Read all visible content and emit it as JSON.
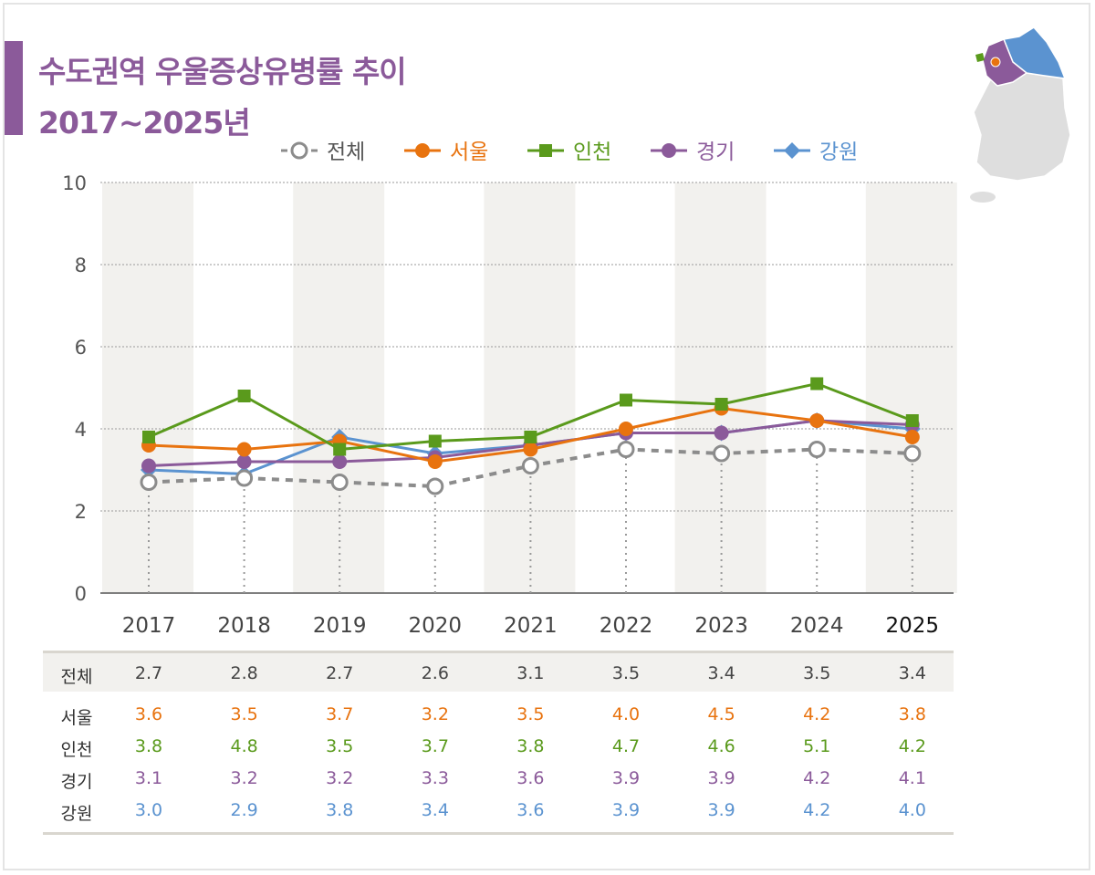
{
  "title": {
    "line1": "수도권역 우울증상유병률 추이",
    "line2": "2017~2025년"
  },
  "chart_data": {
    "type": "line",
    "title": "수도권역 우울증상유병률 추이 2017~2025년",
    "categories": [
      "2017",
      "2018",
      "2019",
      "2020",
      "2021",
      "2022",
      "2023",
      "2024",
      "2025"
    ],
    "ylim": [
      0,
      10
    ],
    "yticks": [
      "0",
      "2",
      "4",
      "6",
      "8",
      "10"
    ],
    "grid": true,
    "legend_position": "top",
    "series": [
      {
        "name": "전체",
        "color": "#8c8c8c",
        "marker": "open-circle",
        "dashed": true,
        "values": [
          2.7,
          2.8,
          2.7,
          2.6,
          3.1,
          3.5,
          3.4,
          3.5,
          3.4
        ]
      },
      {
        "name": "서울",
        "color": "#e8730f",
        "marker": "circle",
        "values": [
          3.6,
          3.5,
          3.7,
          3.2,
          3.5,
          4.0,
          4.5,
          4.2,
          3.8
        ]
      },
      {
        "name": "인천",
        "color": "#5a9a1c",
        "marker": "square",
        "values": [
          3.8,
          4.8,
          3.5,
          3.7,
          3.8,
          4.7,
          4.6,
          5.1,
          4.2
        ]
      },
      {
        "name": "경기",
        "color": "#8b5a9a",
        "marker": "circle",
        "values": [
          3.1,
          3.2,
          3.2,
          3.3,
          3.6,
          3.9,
          3.9,
          4.2,
          4.1
        ]
      },
      {
        "name": "강원",
        "color": "#5b93d0",
        "marker": "diamond",
        "values": [
          3.0,
          2.9,
          3.8,
          3.4,
          3.6,
          3.9,
          3.9,
          4.2,
          4.0
        ]
      }
    ]
  },
  "table": {
    "rows": [
      {
        "label": "전체",
        "values": [
          "2.7",
          "2.8",
          "2.7",
          "2.6",
          "3.1",
          "3.5",
          "3.4",
          "3.5",
          "3.4"
        ]
      },
      {
        "label": "서울",
        "values": [
          "3.6",
          "3.5",
          "3.7",
          "3.2",
          "3.5",
          "4.0",
          "4.5",
          "4.2",
          "3.8"
        ]
      },
      {
        "label": "인천",
        "values": [
          "3.8",
          "4.8",
          "3.5",
          "3.7",
          "3.8",
          "4.7",
          "4.6",
          "5.1",
          "4.2"
        ]
      },
      {
        "label": "경기",
        "values": [
          "3.1",
          "3.2",
          "3.2",
          "3.3",
          "3.6",
          "3.9",
          "3.9",
          "4.2",
          "4.1"
        ]
      },
      {
        "label": "강원",
        "values": [
          "3.0",
          "2.9",
          "3.8",
          "3.4",
          "3.6",
          "3.9",
          "3.9",
          "4.2",
          "4.0"
        ]
      }
    ]
  }
}
